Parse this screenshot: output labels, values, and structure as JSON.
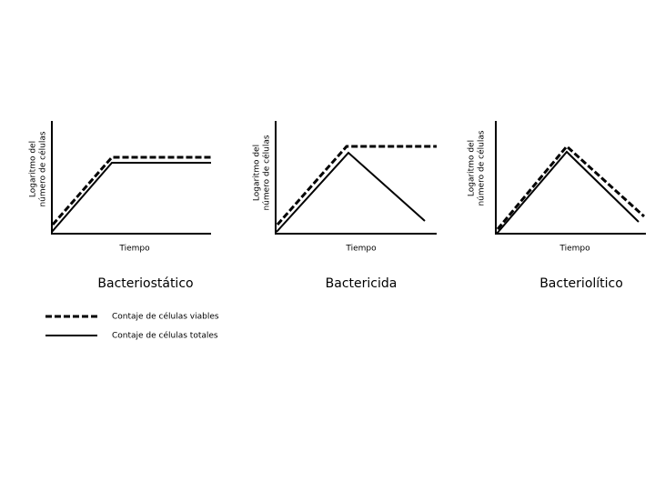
{
  "panels": [
    {
      "title": "Bacteriostático",
      "x_label": "Tiempo",
      "y_label_lines": [
        "Logaritmo del",
        "número de células"
      ]
    },
    {
      "title": "Bactericida",
      "x_label": "Tiempo",
      "y_label_lines": [
        "Logaritmo del",
        "número de células"
      ]
    },
    {
      "title": "Bacteriolítico",
      "x_label": "Tiempo",
      "y_label_lines": [
        "Logaritmo del",
        "número de células"
      ]
    }
  ],
  "legend": [
    "Contaje de células viables",
    "Contaje de células totales"
  ]
}
